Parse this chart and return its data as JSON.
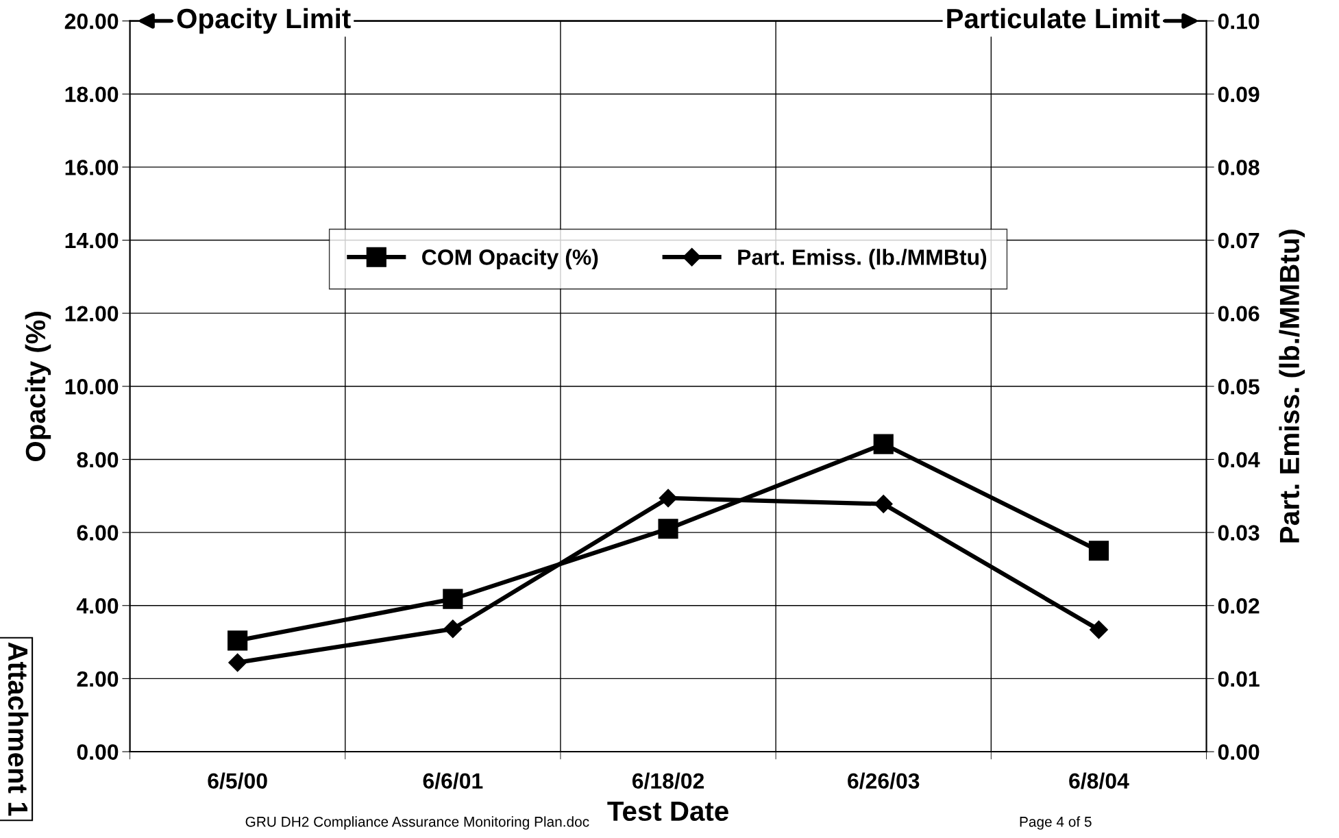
{
  "chart_data": {
    "type": "line",
    "xlabel": "Test Date",
    "ylabel": "Opacity (%)",
    "y2label": "Part. Emiss. (lb./MMBtu)",
    "categories": [
      "6/5/00",
      "6/6/01",
      "6/18/02",
      "6/26/03",
      "6/8/04"
    ],
    "series": [
      {
        "name": "COM Opacity (%)",
        "color": "#000000",
        "marker": "square",
        "values": [
          3.04,
          4.18,
          6.1,
          8.42,
          5.5
        ]
      },
      {
        "name": "Part. Emiss. (lb./MMBtu)",
        "color": "#000000",
        "marker": "diamond",
        "axis": "y2",
        "values": [
          0.0122,
          0.0168,
          0.0347,
          0.0339,
          0.0167
        ]
      }
    ],
    "ylim": [
      0,
      20
    ],
    "yticks": [
      {
        "value": 0,
        "label": "0.00"
      },
      {
        "value": 2,
        "label": "2.00"
      },
      {
        "value": 4,
        "label": "4.00"
      },
      {
        "value": 6,
        "label": "6.00"
      },
      {
        "value": 8,
        "label": "8.00"
      },
      {
        "value": 10,
        "label": "10.00"
      },
      {
        "value": 12,
        "label": "12.00"
      },
      {
        "value": 14,
        "label": "14.00"
      },
      {
        "value": 16,
        "label": "16.00"
      },
      {
        "value": 18,
        "label": "18.00"
      },
      {
        "value": 20,
        "label": "20.00"
      }
    ],
    "y2lim": [
      0,
      0.1
    ],
    "y2ticks": [
      {
        "value": 0,
        "label": "0.00"
      },
      {
        "value": 0.01,
        "label": "0.01"
      },
      {
        "value": 0.02,
        "label": "0.02"
      },
      {
        "value": 0.03,
        "label": "0.03"
      },
      {
        "value": 0.04,
        "label": "0.04"
      },
      {
        "value": 0.05,
        "label": "0.05"
      },
      {
        "value": 0.06,
        "label": "0.06"
      },
      {
        "value": 0.07,
        "label": "0.07"
      },
      {
        "value": 0.08,
        "label": "0.08"
      },
      {
        "value": 0.09,
        "label": "0.09"
      },
      {
        "value": 0.1,
        "label": "0.10"
      }
    ],
    "ref_lines": [
      {
        "axis": "y",
        "value": 20,
        "label": "Opacity Limit",
        "color": "#000000"
      },
      {
        "axis": "y2",
        "value": 0.1,
        "label": "Particulate Limit",
        "color": "#000000"
      }
    ],
    "grid": true,
    "legend": "top",
    "line_style": "solid",
    "annotations": [
      "GRU DH2 Compliance Assurance Monitoring Plan.doc",
      "Page 4 of 5",
      "Attachment 1"
    ]
  }
}
